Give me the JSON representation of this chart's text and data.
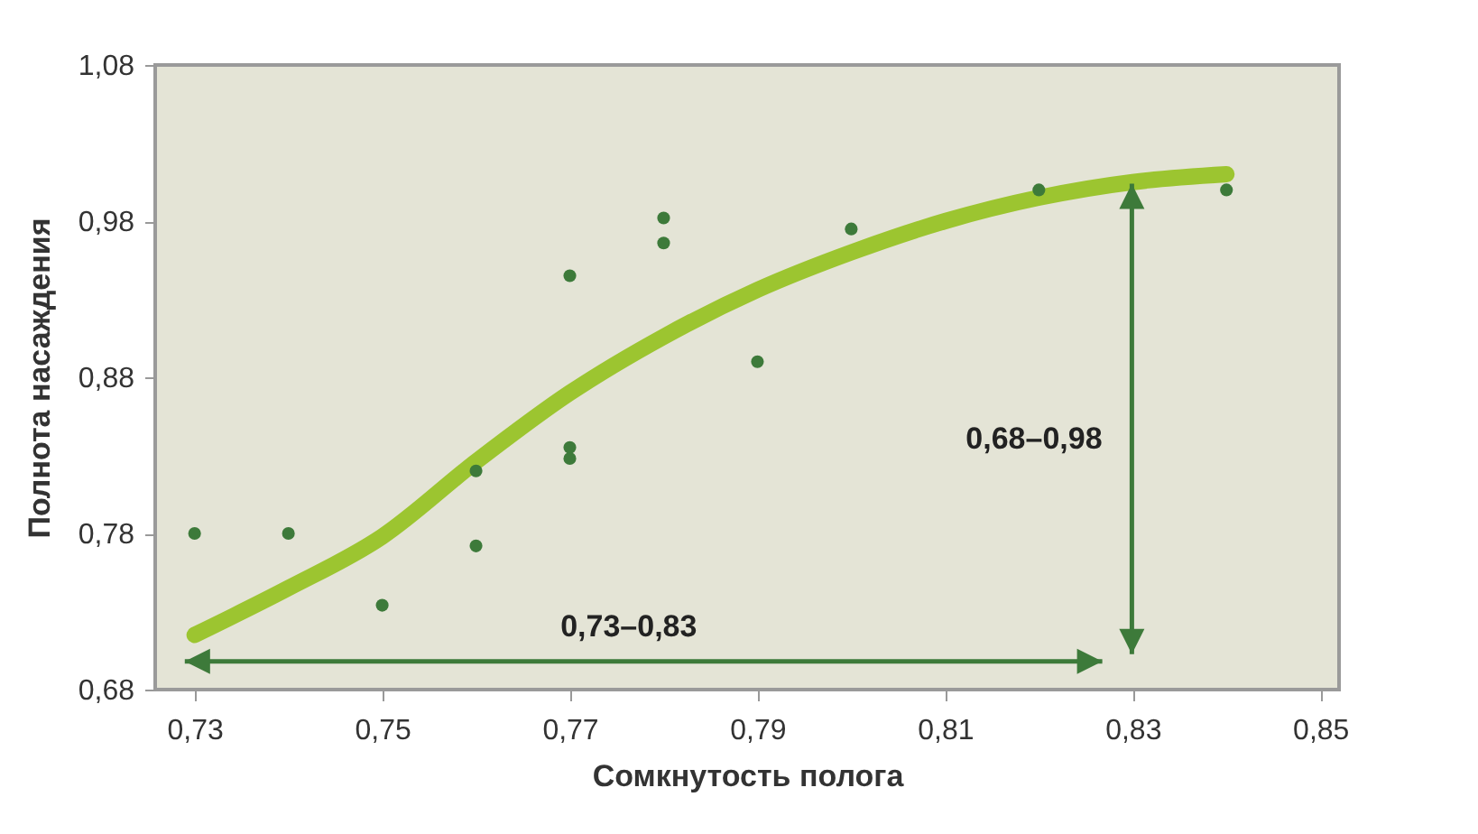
{
  "chart_data": {
    "type": "scatter",
    "xlabel": "Сомкнутость полога",
    "ylabel": "Полнота насаждения",
    "series": [
      {
        "marker": "circle",
        "color": "#3d7a3a",
        "x": [
          0.73,
          0.74,
          0.75,
          0.76,
          0.76,
          0.77,
          0.77,
          0.77,
          0.78,
          0.78,
          0.79,
          0.8,
          0.82,
          0.84
        ],
        "values": [
          0.78,
          0.78,
          0.734,
          0.82,
          0.772,
          0.945,
          0.835,
          0.828,
          0.982,
          0.966,
          0.89,
          0.975,
          1.0,
          1.0
        ]
      },
      {
        "type": "line",
        "color": "#9cc530",
        "x": [
          0.73,
          0.74,
          0.75,
          0.76,
          0.77,
          0.78,
          0.79,
          0.8,
          0.81,
          0.82,
          0.83,
          0.84
        ],
        "values": [
          0.715,
          0.745,
          0.778,
          0.826,
          0.87,
          0.906,
          0.936,
          0.96,
          0.98,
          0.995,
          1.005,
          1.01
        ]
      }
    ],
    "annotations": [
      "0,73–0,83",
      "0,68–0,98"
    ],
    "xlim": [
      0.7258,
      0.852
    ],
    "ylim": [
      0.68,
      1.08
    ],
    "xticks": [
      {
        "value": 0.73,
        "label": "0,73"
      },
      {
        "value": 0.75,
        "label": "0,75"
      },
      {
        "value": 0.77,
        "label": "0,77"
      },
      {
        "value": 0.79,
        "label": "0,79"
      },
      {
        "value": 0.81,
        "label": "0,81"
      },
      {
        "value": 0.83,
        "label": "0,83"
      },
      {
        "value": 0.85,
        "label": "0,85"
      }
    ],
    "yticks": [
      {
        "value": 0.68,
        "label": "0,68"
      },
      {
        "value": 0.78,
        "label": "0,78"
      },
      {
        "value": 0.88,
        "label": "0,88"
      },
      {
        "value": 0.98,
        "label": "0,98"
      },
      {
        "value": 1.08,
        "label": "1,08"
      }
    ],
    "line_style": "solid",
    "grid": false
  }
}
